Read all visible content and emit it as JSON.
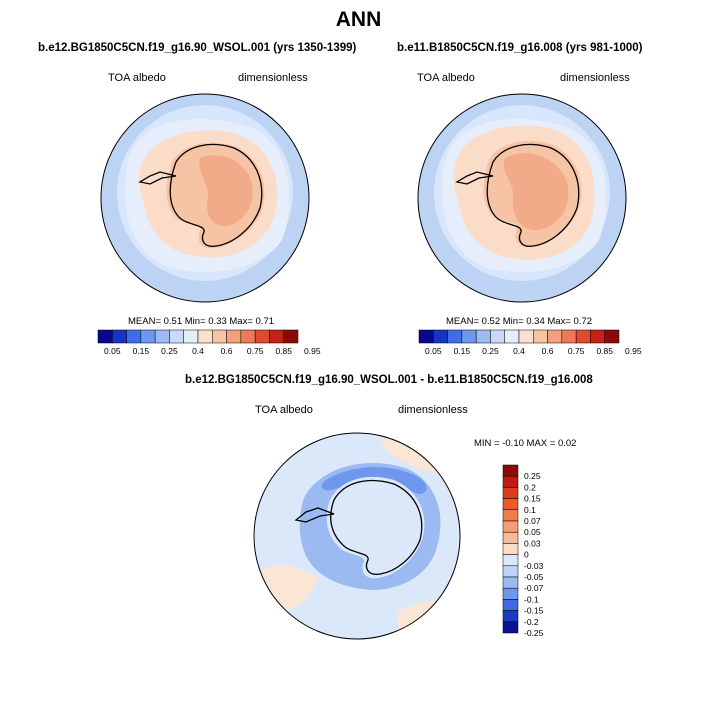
{
  "title": "ANN",
  "panels": [
    {
      "case": "b.e12.BG1850C5CN.f19_g16.90_WSOL.001 (yrs 1350-1399)",
      "field": "TOA albedo",
      "units": "dimensionless",
      "stats": "MEAN=   0.51  Min=   0.33  Max=   0.71"
    },
    {
      "case": "b.e11.B1850C5CN.f19_g16.008 (yrs 981-1000)",
      "field": "TOA albedo",
      "units": "dimensionless",
      "stats": "MEAN=   0.52  Min=   0.34  Max=   0.72"
    }
  ],
  "diff": {
    "case": "b.e12.BG1850C5CN.f19_g16.90_WSOL.001 - b.e11.B1850C5CN.f19_g16.008",
    "field": "TOA albedo",
    "units": "dimensionless",
    "stats": "MIN =  -0.10 MAX =   0.02"
  },
  "colorbar_top": {
    "labels": [
      "0.05",
      "0.15",
      "0.25",
      "0.4",
      "0.6",
      "0.75",
      "0.85",
      "0.95"
    ],
    "colors": [
      "#08088c",
      "#1535c8",
      "#3d6ee8",
      "#6e97ee",
      "#9dbaf2",
      "#c8daf8",
      "#e4eefb",
      "#fbe0cc",
      "#f6c3a4",
      "#f2a07d",
      "#ec7a56",
      "#e04a30",
      "#c42216",
      "#8c0a08"
    ]
  },
  "colorbar_diff": {
    "labels": [
      "0.25",
      "0.2",
      "0.15",
      "0.1",
      "0.07",
      "0.05",
      "0.03",
      "0",
      "-0.03",
      "-0.05",
      "-0.07",
      "-0.1",
      "-0.15",
      "-0.2",
      "-0.25"
    ],
    "colors": [
      "#8c0a08",
      "#bf1a10",
      "#e03a1c",
      "#f05a2a",
      "#f47c4a",
      "#f49c72",
      "#f6bb98",
      "#fbdcc4",
      "#dbe8fa",
      "#bfd3f6",
      "#9cbaf2",
      "#6f97ee",
      "#3c6ae8",
      "#1a3ac8",
      "#0a1296"
    ]
  },
  "colors": {
    "ocean_outer": "#bdd3f4",
    "ocean_mid": "#d7e6fa",
    "ocean_inner": "#e6eefb",
    "coast_peach": "#fbdcc8",
    "land": "#f6c3a4",
    "land_high": "#f2ab89",
    "diff_bg": "#dbe8fa",
    "diff_pos": "#fbe5d4",
    "diff_neg": "#9cbaf2",
    "diff_neg_dark": "#6f97ee"
  }
}
